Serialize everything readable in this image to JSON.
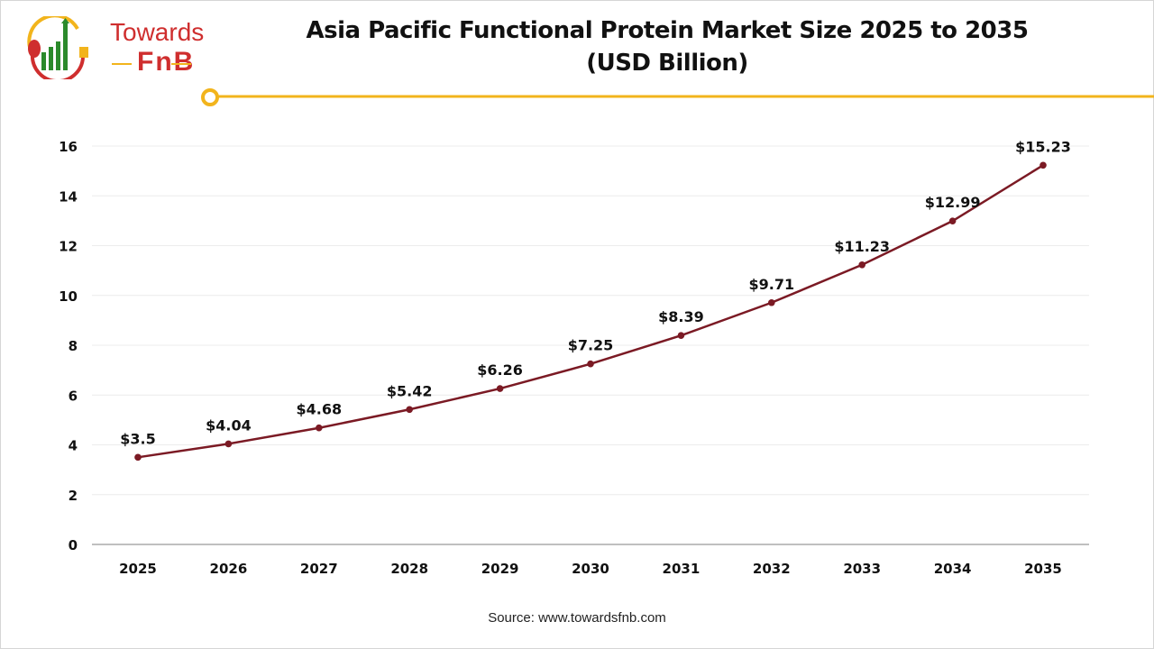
{
  "brand": {
    "logo_text": "Towards FnB",
    "accent_color": "#f2b41c"
  },
  "title_line1": "Asia Pacific Functional Protein Market Size 2025 to 2035",
  "title_line2": "(USD Billion)",
  "source": "Source: www.towardsfnb.com",
  "chart_data": {
    "type": "line",
    "title": "Asia Pacific Functional Protein Market Size 2025 to 2035 (USD Billion)",
    "categories": [
      "2025",
      "2026",
      "2027",
      "2028",
      "2029",
      "2030",
      "2031",
      "2032",
      "2033",
      "2034",
      "2035"
    ],
    "series": [
      {
        "values": [
          3.5,
          4.04,
          4.68,
          5.42,
          6.26,
          7.25,
          8.39,
          9.71,
          11.23,
          12.99,
          15.23
        ],
        "color": "#7b1a24"
      }
    ],
    "data_labels": [
      "$3.5",
      "$4.04",
      "$4.68",
      "$5.42",
      "$6.26",
      "$7.25",
      "$8.39",
      "$9.71",
      "$11.23",
      "$12.99",
      "$15.23"
    ],
    "yticks": [
      0,
      2,
      4,
      6,
      8,
      10,
      12,
      14,
      16
    ],
    "ylim": [
      0,
      16
    ],
    "xlabel": "",
    "ylabel": "",
    "grid": true,
    "legend": "none"
  }
}
